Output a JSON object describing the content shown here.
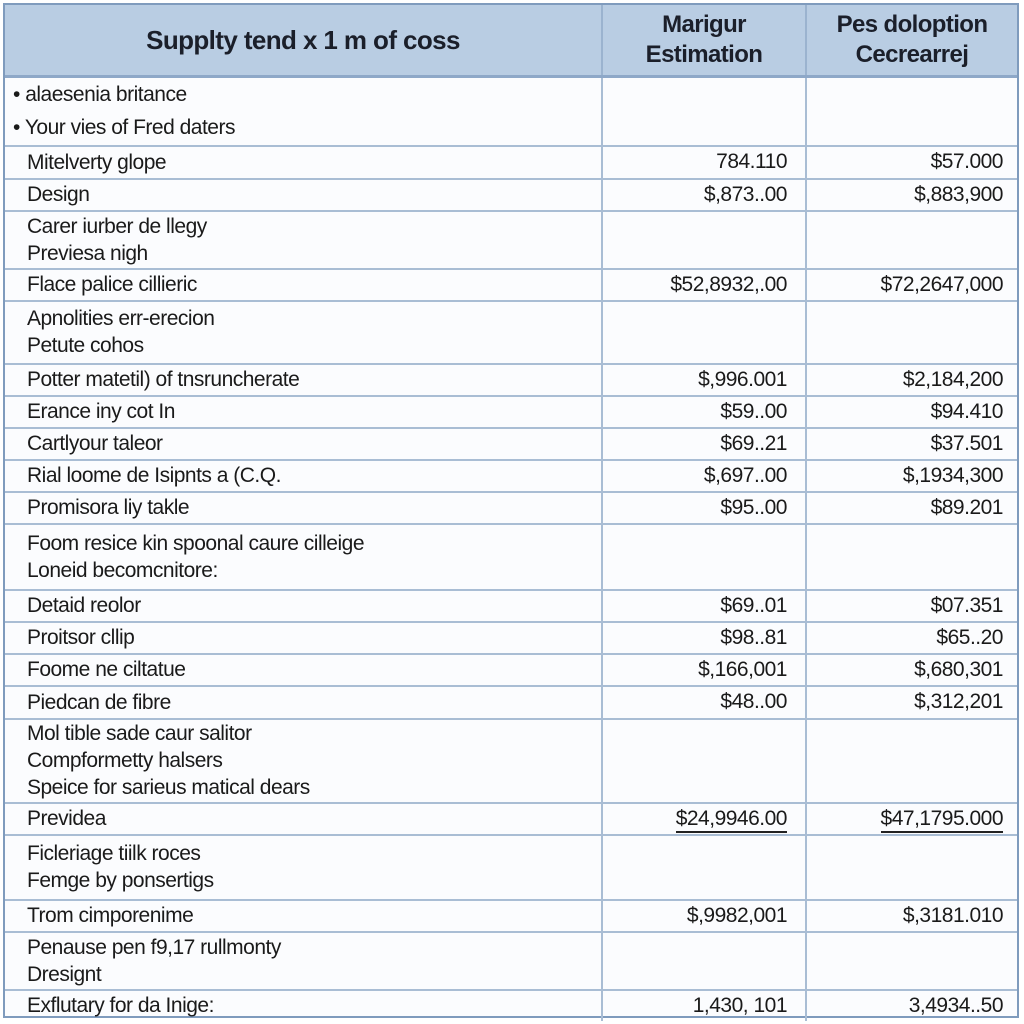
{
  "header": {
    "col1": "Supplty tend x 1 m of coss",
    "col2_line1": "Marigur",
    "col2_line2": "Estimation",
    "col3_line1": "Pes doloption",
    "col3_line2": "Cecrearrej"
  },
  "rows": [
    {
      "lines": [
        "alaesenia britance",
        "Your vies of Fred daters"
      ],
      "bullets": true,
      "est": "",
      "dec": ""
    },
    {
      "lines": [
        "Mitelverty glope"
      ],
      "est": "784.110",
      "dec": "$57.000"
    },
    {
      "lines": [
        "Design"
      ],
      "est": "$,873..00",
      "dec": "$,883,900"
    },
    {
      "lines": [
        "Carer iurber de llegy",
        "Previesa nigh"
      ],
      "est": "",
      "dec": ""
    },
    {
      "lines": [
        "Flace palice cillieric"
      ],
      "est": "$52,8932,.00",
      "dec": "$72,2647,000"
    },
    {
      "lines": [
        "Apnolities err-erecion",
        "Petute cohos"
      ],
      "est": "",
      "dec": ""
    },
    {
      "lines": [
        "Potter matetil) of tnsruncherate"
      ],
      "est": "$,996.001",
      "dec": "$2,184,200"
    },
    {
      "lines": [
        "Erance iny cot In"
      ],
      "est": "$59..00",
      "dec": "$94.410"
    },
    {
      "lines": [
        "Cartlyour taleor"
      ],
      "est": "$69..21",
      "dec": "$37.501"
    },
    {
      "lines": [
        "Rial loome de Isipnts a (C.Q."
      ],
      "est": "$,697..00",
      "dec": "$,1934,300"
    },
    {
      "lines": [
        "Promisora liy takle"
      ],
      "est": "$95..00",
      "dec": "$89.201"
    },
    {
      "lines": [
        "Foom resice kin spoonal caure cilleige",
        "Loneid becomcnitore:"
      ],
      "est": "",
      "dec": ""
    },
    {
      "lines": [
        "Detaid reolor"
      ],
      "est": "$69..01",
      "dec": "$07.351"
    },
    {
      "lines": [
        "Proitsor cllip"
      ],
      "est": "$98..81",
      "dec": "$65..20"
    },
    {
      "lines": [
        "Foome ne ciltatue"
      ],
      "est": "$,166,001",
      "dec": "$,680,301"
    },
    {
      "lines": [
        "Piedcan de fibre"
      ],
      "est": "$48..00",
      "dec": "$,312,201"
    },
    {
      "lines": [
        "Mol tible sade caur salitor",
        "Compformetty halsers",
        "Speice for sarieus matical dears"
      ],
      "est": "",
      "dec": ""
    },
    {
      "lines": [
        "Previdea"
      ],
      "est": "$24,9946.00",
      "dec": "$47,1795.000",
      "underline": true
    },
    {
      "lines": [
        "Ficleriage tiilk roces",
        "Femge by ponsertigs"
      ],
      "est": "",
      "dec": ""
    },
    {
      "lines": [
        "Trom cimporenime"
      ],
      "est": "$,9982,001",
      "dec": "$,3181.010"
    },
    {
      "lines": [
        "Penause pen f9,17 rullmonty",
        "Dresignt"
      ],
      "est": "",
      "dec": ""
    },
    {
      "lines": [
        "Exflutary for da Inige:"
      ],
      "est": "1,430, 101",
      "dec": "3,4934..50"
    }
  ],
  "colors": {
    "header_bg": "#b9cde3",
    "border": "#a9bdd4",
    "outer_border": "#7f9bbd"
  }
}
